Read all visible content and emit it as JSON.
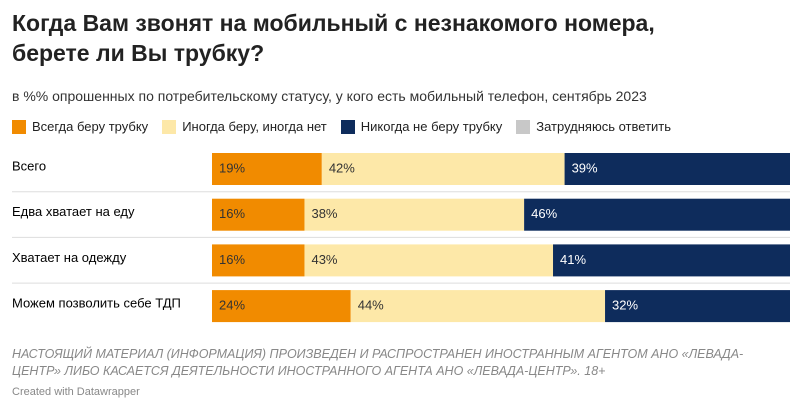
{
  "chart_data": {
    "type": "stacked-bar-horizontal",
    "title": "Когда Вам звонят на мобильный с незнакомого номера, берете ли Вы трубку?",
    "subtitle": "в %% опрошенных по потребительскому статусу, у кого есть мобильный телефон, сентябрь 2023",
    "categories": [
      "Всего",
      "Едва хватает на еду",
      "Хватает на одежду",
      "Можем позволить себе ТДП"
    ],
    "xlim": [
      0,
      100
    ],
    "series": [
      {
        "name": "Всегда беру трубку",
        "color": "#f18b00",
        "values": [
          19,
          16,
          16,
          24
        ],
        "value_labels": [
          "19%",
          "16%",
          "16%",
          "24%"
        ]
      },
      {
        "name": "Иногда беру, иногда нет",
        "color": "#fde8a8",
        "values": [
          42,
          38,
          43,
          44
        ],
        "value_labels": [
          "42%",
          "38%",
          "43%",
          "44%"
        ]
      },
      {
        "name": "Никогда не беру трубку",
        "color": "#0e2c5c",
        "values": [
          39,
          46,
          41,
          32
        ],
        "value_labels": [
          "39%",
          "46%",
          "41%",
          "32%"
        ]
      },
      {
        "name": "Затрудняюсь ответить",
        "color": "#c8c8c8",
        "values": [
          0,
          0,
          0,
          0
        ]
      }
    ],
    "notes": "НАСТОЯЩИЙ МАТЕРИАЛ (ИНФОРМАЦИЯ) ПРОИЗВЕДЕН И РАСПРОСТРАНЕН ИНОСТРАННЫМ АГЕНТОМ АНО «ЛЕВАДА-ЦЕНТР» ЛИБО КАСАЕТСЯ ДЕЯТЕЛЬНОСТИ ИНОСТРАННОГО АГЕНТА АНО «ЛЕВАДА-ЦЕНТР». 18+",
    "credit": "Created with Datawrapper"
  }
}
